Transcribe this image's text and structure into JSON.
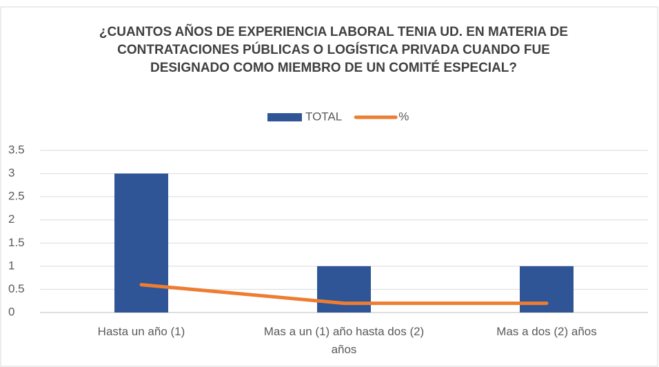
{
  "chart_data": {
    "type": "bar",
    "title": "¿CUANTOS AÑOS DE EXPERIENCIA LABORAL TENIA UD. EN MATERIA DE CONTRATACIONES PÚBLICAS O LOGÍSTICA PRIVADA CUANDO FUE DESIGNADO COMO MIEMBRO DE UN COMITÉ ESPECIAL?",
    "categories": [
      "Hasta un año (1)",
      "Mas a un (1) año hasta dos (2) años",
      "Mas a dos (2) años"
    ],
    "series": [
      {
        "name": "TOTAL",
        "type": "bar",
        "color": "#2f5597",
        "values": [
          3,
          1,
          1
        ]
      },
      {
        "name": "%",
        "type": "line",
        "color": "#ed7d31",
        "values": [
          0.6,
          0.2,
          0.2
        ]
      }
    ],
    "ylim": [
      0,
      3.5
    ],
    "yticks": [
      0,
      0.5,
      1,
      1.5,
      2,
      2.5,
      3,
      3.5
    ],
    "grid": true,
    "legend": "top"
  }
}
